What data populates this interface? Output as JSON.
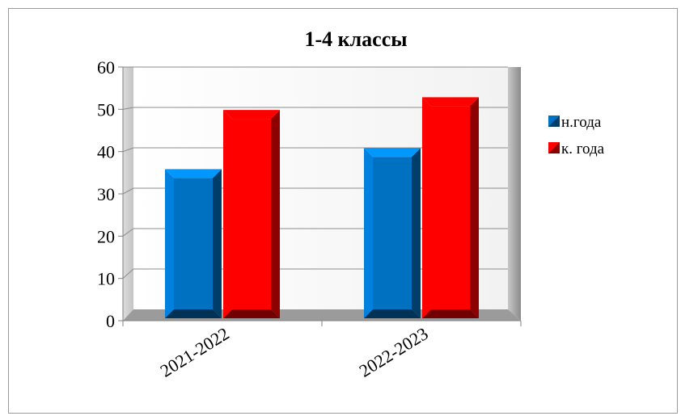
{
  "chart_data": {
    "type": "bar",
    "title": "1-4 классы",
    "categories": [
      "2021-2022",
      "2022-2023"
    ],
    "series": [
      {
        "name": "н.года",
        "values": [
          37,
          42
        ],
        "color": "#0070C0"
      },
      {
        "name": "к. года",
        "values": [
          51,
          54
        ],
        "color": "#FF0000"
      }
    ],
    "ylim": [
      0,
      60
    ],
    "yticks": [
      0,
      10,
      20,
      30,
      40,
      50,
      60
    ],
    "grid": true,
    "legend": "right",
    "style": "3d-clustered"
  }
}
